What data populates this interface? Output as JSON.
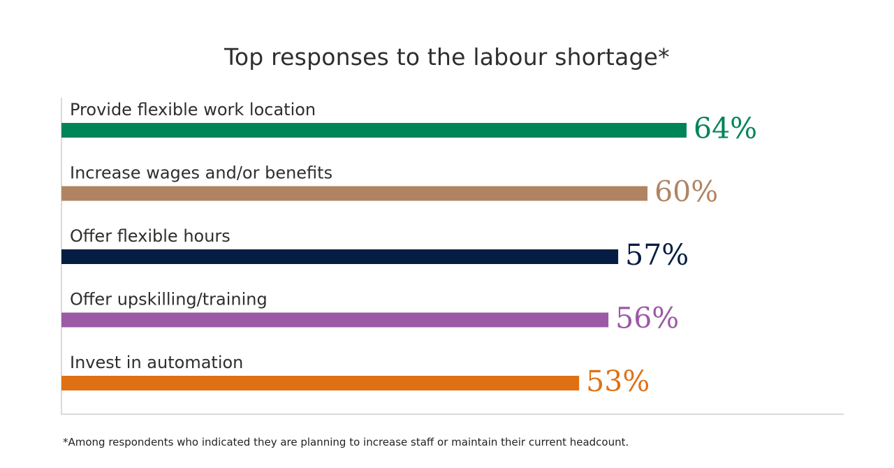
{
  "chart_data": {
    "type": "bar",
    "orientation": "horizontal",
    "title": "Top responses to the labour shortage*",
    "categories": [
      "Provide flexible work location",
      "Increase wages and/or benefits",
      "Offer flexible hours",
      "Offer upskilling/training",
      "Invest in automation"
    ],
    "values": [
      64,
      60,
      57,
      56,
      53
    ],
    "value_labels": [
      "64%",
      "60%",
      "57%",
      "56%",
      "53%"
    ],
    "colors": [
      "#00845a",
      "#b08462",
      "#051d42",
      "#9b59a6",
      "#e07014"
    ],
    "xlim": [
      0,
      80
    ],
    "grid": false,
    "legend": "none",
    "footnote": "*Among respondents who indicated they are planning to increase staff or maintain their current headcount."
  }
}
